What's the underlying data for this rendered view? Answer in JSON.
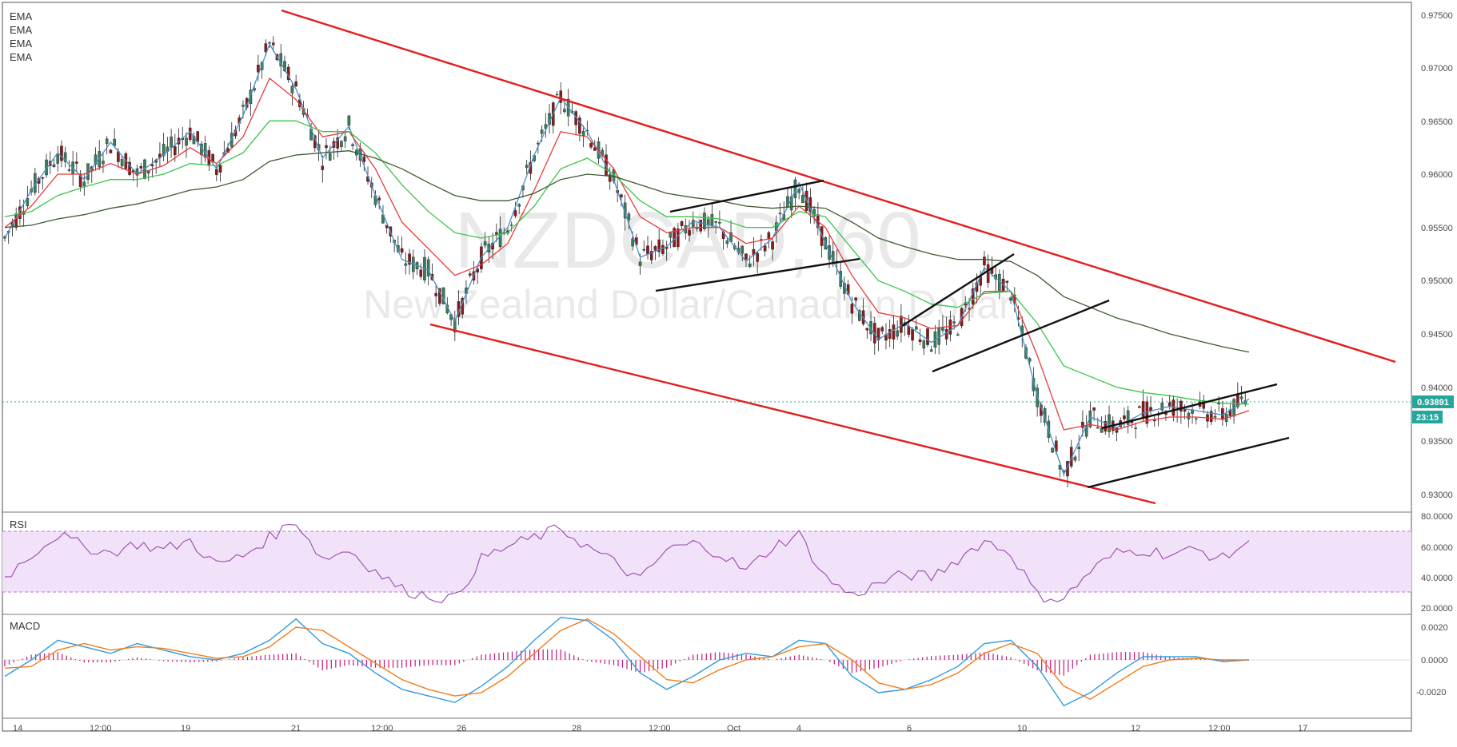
{
  "header": {
    "legend": [
      "EMA",
      "EMA",
      "EMA",
      "EMA"
    ],
    "watermark_symbol": "NZDCAD, 60",
    "watermark_name": "New Zealand Dollar/Canadian Dollar"
  },
  "price_axis": {
    "ticks": [
      "0.97500",
      "0.97000",
      "0.96500",
      "0.96000",
      "0.95500",
      "0.95000",
      "0.94500",
      "0.94000",
      "0.93500",
      "0.93000"
    ],
    "current_price": "0.93891",
    "countdown": "23:15"
  },
  "rsi": {
    "label": "RSI",
    "ticks": [
      "80.0000",
      "60.0000",
      "40.0000",
      "20.0000"
    ]
  },
  "macd": {
    "label": "MACD",
    "ticks": [
      "0.0020",
      "0.0000",
      "-0.0020"
    ]
  },
  "time_axis": {
    "ticks": [
      "14",
      "12:00",
      "19",
      "21",
      "12:00",
      "26",
      "28",
      "12:00",
      "Oct",
      "4",
      "6",
      "10",
      "12",
      "12:00",
      "17"
    ]
  },
  "colors": {
    "up_candle": "#3a7d5b",
    "down_candle": "#8b1a1a",
    "ema_fast": "#4a90c8",
    "ema_2": "#e23b3b",
    "ema_3": "#39c54a",
    "ema_4": "#3e5a2f",
    "trendline_red": "#e41b1b",
    "trendline_black": "#111111",
    "rsi_line": "#9b4ab0",
    "rsi_band": "#f1e2fa",
    "macd_line": "#2f9be0",
    "signal_line": "#f07d1e",
    "histogram": "#c2187a",
    "price_label_bg": "#26a69a"
  },
  "chart_data": [
    {
      "type": "line",
      "series": [
        {
          "values": [
            0.954,
            0.9585,
            0.962,
            0.9595,
            0.963,
            0.96,
            0.9618,
            0.964,
            0.9605,
            0.9655,
            0.9722,
            0.968,
            0.9615,
            0.9645,
            0.958,
            0.952,
            0.951,
            0.9462,
            0.9522,
            0.955,
            0.9618,
            0.9672,
            0.964,
            0.9595,
            0.9522,
            0.9532,
            0.9556,
            0.955,
            0.9518,
            0.954,
            0.9592,
            0.9535,
            0.948,
            0.9445,
            0.946,
            0.9442,
            0.9458,
            0.9512,
            0.949,
            0.9392,
            0.9318,
            0.9372,
            0.9362,
            0.9376,
            0.9382,
            0.9378,
            0.9374,
            0.9389
          ]
        },
        {
          "values": [
            0.955,
            0.957,
            0.96,
            0.96,
            0.961,
            0.96,
            0.9608,
            0.9625,
            0.961,
            0.9635,
            0.969,
            0.967,
            0.9635,
            0.964,
            0.9605,
            0.9555,
            0.953,
            0.9505,
            0.9515,
            0.9535,
            0.9585,
            0.964,
            0.9635,
            0.9605,
            0.956,
            0.9545,
            0.955,
            0.955,
            0.9535,
            0.954,
            0.957,
            0.955,
            0.9505,
            0.947,
            0.9465,
            0.9455,
            0.9458,
            0.949,
            0.949,
            0.943,
            0.936,
            0.9365,
            0.936,
            0.9368,
            0.9372,
            0.9372,
            0.937,
            0.9378
          ]
        },
        {
          "values": [
            0.956,
            0.9565,
            0.958,
            0.9588,
            0.9595,
            0.9595,
            0.96,
            0.961,
            0.9608,
            0.962,
            0.965,
            0.965,
            0.964,
            0.964,
            0.962,
            0.959,
            0.9565,
            0.9545,
            0.954,
            0.9545,
            0.957,
            0.9605,
            0.9615,
            0.96,
            0.9575,
            0.956,
            0.956,
            0.9558,
            0.955,
            0.955,
            0.9565,
            0.956,
            0.953,
            0.95,
            0.949,
            0.9478,
            0.9475,
            0.9488,
            0.949,
            0.946,
            0.942,
            0.941,
            0.94,
            0.9395,
            0.9392,
            0.9388,
            0.9385,
            0.9384
          ]
        },
        {
          "values": [
            0.955,
            0.9552,
            0.9558,
            0.9562,
            0.9568,
            0.9572,
            0.9578,
            0.9585,
            0.9588,
            0.9595,
            0.9612,
            0.9618,
            0.962,
            0.9622,
            0.9615,
            0.9605,
            0.9592,
            0.958,
            0.9575,
            0.9575,
            0.9582,
            0.9595,
            0.96,
            0.9598,
            0.959,
            0.9582,
            0.9578,
            0.9575,
            0.957,
            0.9568,
            0.957,
            0.9568,
            0.9555,
            0.954,
            0.9532,
            0.9525,
            0.952,
            0.952,
            0.9518,
            0.9505,
            0.9485,
            0.9475,
            0.9465,
            0.9458,
            0.945,
            0.9444,
            0.9438,
            0.9433
          ]
        }
      ]
    },
    {
      "type": "line",
      "ylim": [
        20,
        80
      ],
      "series": [
        {
          "values": [
            40,
            55,
            68,
            60,
            56,
            62,
            58,
            64,
            48,
            54,
            66,
            77,
            52,
            58,
            44,
            32,
            28,
            26,
            52,
            60,
            66,
            72,
            60,
            50,
            38,
            58,
            62,
            56,
            44,
            60,
            68,
            40,
            28,
            36,
            42,
            40,
            52,
            64,
            56,
            28,
            26,
            44,
            56,
            58,
            55,
            58,
            52,
            64
          ]
        }
      ]
    },
    {
      "type": "line",
      "ylim": [
        -0.0025,
        0.0025
      ],
      "series": [
        {
          "values": [
            -0.001,
            0.0,
            0.0012,
            0.0008,
            0.0004,
            0.001,
            0.0006,
            0.0002,
            0.0,
            0.0004,
            0.0012,
            0.0025,
            0.001,
            0.0004,
            -0.0008,
            -0.0018,
            -0.0022,
            -0.0026,
            -0.0016,
            -0.0004,
            0.0012,
            0.0026,
            0.0024,
            0.0012,
            -0.0008,
            -0.0018,
            -0.001,
            0.0,
            0.0004,
            0.0002,
            0.0012,
            0.001,
            -0.001,
            -0.002,
            -0.0018,
            -0.0012,
            -0.0004,
            0.001,
            0.0012,
            -0.0004,
            -0.0028,
            -0.002,
            -0.0008,
            0.0002,
            0.0002,
            0.0002,
            -0.0001,
            0.0
          ]
        },
        {
          "values": [
            -0.0005,
            -0.0004,
            0.0006,
            0.001,
            0.0006,
            0.0008,
            0.0007,
            0.0004,
            0.0001,
            0.0002,
            0.0008,
            0.002,
            0.0018,
            0.0008,
            -0.0002,
            -0.0012,
            -0.0018,
            -0.0022,
            -0.002,
            -0.001,
            0.0004,
            0.0018,
            0.0025,
            0.0016,
            0.0002,
            -0.0012,
            -0.0014,
            -0.0006,
            0.0,
            0.0002,
            0.0008,
            0.001,
            0.0,
            -0.0014,
            -0.0018,
            -0.0015,
            -0.0008,
            0.0004,
            0.001,
            0.0004,
            -0.0016,
            -0.0024,
            -0.0014,
            -0.0004,
            0.0,
            0.0001,
            0.0,
            0.0
          ]
        }
      ]
    }
  ]
}
